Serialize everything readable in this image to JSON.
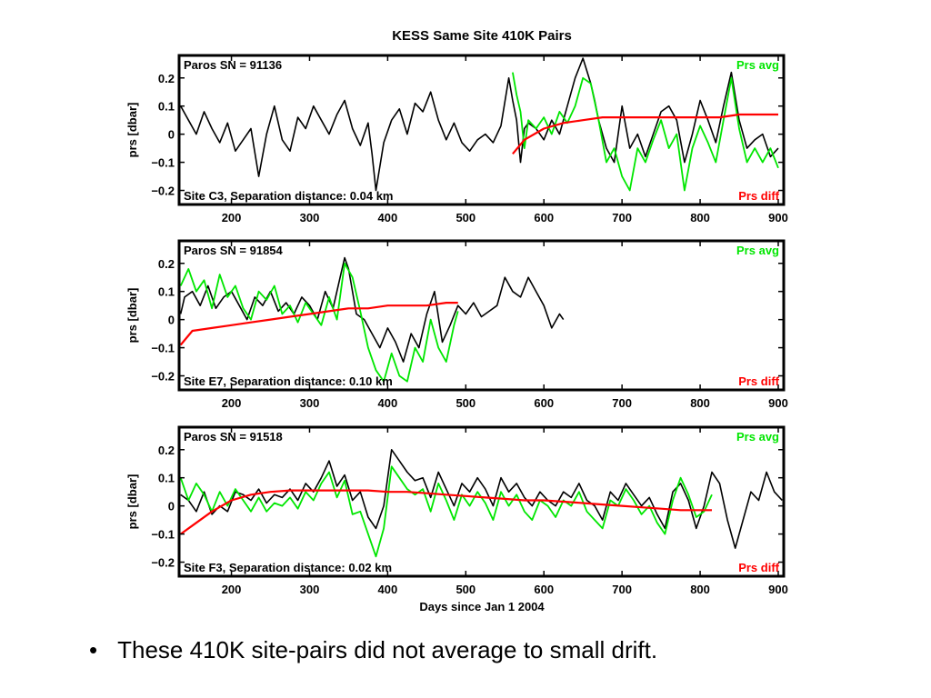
{
  "colors": {
    "avg": "#00e600",
    "diff": "#ff0000",
    "series": "#000000",
    "frame": "#000000"
  },
  "bullet": {
    "marker": "•",
    "text": "These 410K site-pairs did not average to small drift."
  },
  "chart_data": {
    "type": "line",
    "title": "KESS Same Site 410K Pairs",
    "xlabel": "Days since Jan 1 2004",
    "xlim": [
      133,
      907
    ],
    "xticks": [
      200,
      300,
      400,
      500,
      600,
      700,
      800,
      900
    ],
    "ylim": [
      -0.25,
      0.28
    ],
    "yticks": [
      -0.2,
      -0.1,
      0,
      0.1,
      0.2
    ],
    "ytick_labels": [
      "−0.2",
      "−0.1",
      "0",
      "0.1",
      "0.2"
    ],
    "ylabel": "prs [dbar]",
    "legend_avg": "Prs avg",
    "legend_diff": "Prs diff",
    "panels": [
      {
        "sn_label": "Paros SN = 91136",
        "site_label": "Site C3,  Separation distance: 0.04 km",
        "series": [
          {
            "name": "black",
            "x": [
              135,
              145,
              155,
              165,
              175,
              185,
              195,
              205,
              215,
              225,
              235,
              245,
              255,
              265,
              275,
              285,
              295,
              305,
              315,
              325,
              335,
              345,
              355,
              365,
              375,
              380,
              385,
              395,
              405,
              415,
              425,
              435,
              445,
              455,
              465,
              475,
              485,
              495,
              505,
              515,
              525,
              535,
              545,
              555,
              560,
              565,
              570,
              575,
              580,
              590,
              600,
              610,
              620,
              630,
              640,
              650,
              660,
              665,
              670,
              680,
              690,
              700,
              710,
              720,
              730,
              740,
              750,
              760,
              770,
              780,
              790,
              800,
              810,
              820,
              830,
              840,
              850,
              860,
              870,
              880,
              890,
              900
            ],
            "y": [
              0.1,
              0.05,
              0.0,
              0.08,
              0.02,
              -0.03,
              0.04,
              -0.06,
              -0.02,
              0.02,
              -0.15,
              0.0,
              0.1,
              -0.02,
              -0.06,
              0.06,
              0.02,
              0.1,
              0.05,
              0.0,
              0.07,
              0.12,
              0.02,
              -0.04,
              0.04,
              -0.07,
              -0.2,
              -0.03,
              0.05,
              0.09,
              0.0,
              0.11,
              0.08,
              0.15,
              0.05,
              -0.02,
              0.04,
              -0.03,
              -0.06,
              -0.02,
              0.0,
              -0.03,
              0.03,
              0.2,
              0.12,
              0.05,
              -0.1,
              0.02,
              0.04,
              0.02,
              -0.02,
              0.05,
              0.0,
              0.1,
              0.2,
              0.27,
              0.18,
              0.12,
              0.05,
              -0.05,
              -0.1,
              0.1,
              -0.05,
              0.0,
              -0.08,
              0.0,
              0.08,
              0.1,
              0.05,
              -0.1,
              0.0,
              0.12,
              0.05,
              -0.03,
              0.1,
              0.22,
              0.05,
              -0.05,
              -0.02,
              0.0,
              -0.08,
              -0.05
            ]
          },
          {
            "name": "green",
            "x": [
              560,
              565,
              570,
              575,
              580,
              590,
              600,
              610,
              620,
              630,
              640,
              650,
              660,
              670,
              680,
              690,
              700,
              710,
              720,
              730,
              740,
              750,
              760,
              770,
              780,
              790,
              800,
              810,
              820,
              830,
              840,
              850,
              860,
              870,
              880,
              890,
              900
            ],
            "y": [
              0.22,
              0.14,
              0.08,
              -0.05,
              0.05,
              0.02,
              0.06,
              0.0,
              0.08,
              0.04,
              0.1,
              0.2,
              0.18,
              0.05,
              -0.1,
              -0.05,
              -0.15,
              -0.2,
              -0.05,
              -0.1,
              -0.02,
              0.05,
              -0.05,
              0.0,
              -0.2,
              -0.05,
              0.03,
              -0.03,
              -0.1,
              0.05,
              0.2,
              0.02,
              -0.1,
              -0.05,
              -0.1,
              -0.05,
              -0.12
            ]
          },
          {
            "name": "red",
            "x": [
              560,
              575,
              600,
              625,
              650,
              675,
              700,
              725,
              750,
              775,
              800,
              825,
              850,
              875,
              900
            ],
            "y": [
              -0.07,
              -0.02,
              0.02,
              0.04,
              0.05,
              0.06,
              0.06,
              0.06,
              0.06,
              0.06,
              0.06,
              0.06,
              0.07,
              0.07,
              0.07
            ]
          }
        ]
      },
      {
        "sn_label": "Paros SN = 91854",
        "site_label": "Site E7,  Separation distance: 0.10 km",
        "series": [
          {
            "name": "black",
            "x": [
              135,
              140,
              150,
              160,
              170,
              180,
              190,
              200,
              210,
              220,
              230,
              240,
              250,
              260,
              270,
              280,
              290,
              300,
              310,
              320,
              330,
              340,
              345,
              350,
              360,
              370,
              380,
              390,
              400,
              410,
              420,
              430,
              440,
              450,
              460,
              470,
              480,
              490,
              500,
              510,
              520,
              530,
              540,
              550,
              560,
              570,
              580,
              590,
              600,
              610,
              620,
              625
            ],
            "y": [
              0.02,
              0.08,
              0.1,
              0.05,
              0.12,
              0.04,
              0.08,
              0.1,
              0.05,
              0.0,
              0.08,
              0.05,
              0.1,
              0.03,
              0.06,
              0.02,
              0.08,
              0.05,
              0.0,
              0.1,
              0.04,
              0.16,
              0.22,
              0.18,
              0.02,
              0.0,
              -0.05,
              -0.1,
              -0.03,
              -0.08,
              -0.15,
              -0.05,
              -0.1,
              0.02,
              0.1,
              -0.08,
              -0.02,
              0.05,
              0.02,
              0.06,
              0.01,
              0.03,
              0.05,
              0.15,
              0.1,
              0.08,
              0.15,
              0.1,
              0.05,
              -0.03,
              0.02,
              0.0
            ]
          },
          {
            "name": "green",
            "x": [
              135,
              145,
              155,
              165,
              175,
              185,
              195,
              205,
              215,
              225,
              235,
              245,
              255,
              265,
              275,
              285,
              295,
              305,
              315,
              325,
              335,
              345,
              355,
              365,
              375,
              385,
              395,
              405,
              415,
              425,
              435,
              445,
              455,
              465,
              475,
              485,
              490
            ],
            "y": [
              0.12,
              0.18,
              0.1,
              0.14,
              0.04,
              0.16,
              0.08,
              0.12,
              0.04,
              0.0,
              0.1,
              0.07,
              0.12,
              0.02,
              0.05,
              -0.01,
              0.06,
              0.02,
              -0.02,
              0.08,
              0.0,
              0.2,
              0.15,
              0.03,
              -0.1,
              -0.18,
              -0.22,
              -0.12,
              -0.2,
              -0.22,
              -0.1,
              -0.15,
              0.0,
              -0.1,
              -0.15,
              -0.02,
              0.03
            ]
          },
          {
            "name": "red",
            "x": [
              135,
              150,
              175,
              200,
              225,
              250,
              275,
              300,
              325,
              350,
              375,
              400,
              425,
              450,
              475,
              490
            ],
            "y": [
              -0.09,
              -0.04,
              -0.03,
              -0.02,
              -0.01,
              0.0,
              0.01,
              0.02,
              0.03,
              0.04,
              0.04,
              0.05,
              0.05,
              0.05,
              0.06,
              0.06
            ]
          }
        ]
      },
      {
        "sn_label": "Paros SN = 91518",
        "site_label": "Site F3,  Separation distance: 0.02 km",
        "series": [
          {
            "name": "black",
            "x": [
              135,
              145,
              155,
              165,
              175,
              185,
              195,
              205,
              215,
              225,
              235,
              245,
              255,
              265,
              275,
              285,
              295,
              305,
              315,
              325,
              335,
              345,
              355,
              365,
              375,
              385,
              395,
              405,
              415,
              425,
              435,
              445,
              455,
              465,
              475,
              485,
              495,
              505,
              515,
              525,
              535,
              545,
              555,
              565,
              575,
              585,
              595,
              605,
              615,
              625,
              635,
              645,
              655,
              665,
              675,
              685,
              695,
              705,
              715,
              725,
              735,
              745,
              755,
              765,
              775,
              785,
              795,
              805,
              815,
              825,
              835,
              845,
              855,
              865,
              875,
              885,
              895,
              905
            ],
            "y": [
              0.04,
              0.02,
              -0.02,
              0.05,
              -0.03,
              0.0,
              -0.02,
              0.05,
              0.04,
              0.02,
              0.06,
              0.01,
              0.04,
              0.03,
              0.06,
              0.02,
              0.08,
              0.05,
              0.1,
              0.16,
              0.07,
              0.11,
              0.02,
              0.05,
              -0.04,
              -0.08,
              0.0,
              0.2,
              0.16,
              0.12,
              0.09,
              0.1,
              0.03,
              0.12,
              0.06,
              0.0,
              0.08,
              0.05,
              0.1,
              0.06,
              0.0,
              0.1,
              0.05,
              0.08,
              0.03,
              0.0,
              0.05,
              0.02,
              0.0,
              0.05,
              0.03,
              0.08,
              0.02,
              0.0,
              -0.05,
              0.05,
              0.02,
              0.08,
              0.04,
              0.0,
              0.03,
              -0.03,
              -0.08,
              0.05,
              0.08,
              0.02,
              -0.08,
              0.0,
              0.12,
              0.08,
              -0.05,
              -0.15,
              -0.05,
              0.05,
              0.02,
              0.12,
              0.05,
              0.02
            ]
          },
          {
            "name": "green",
            "x": [
              135,
              145,
              155,
              165,
              175,
              185,
              195,
              205,
              215,
              225,
              235,
              245,
              255,
              265,
              275,
              285,
              295,
              305,
              315,
              325,
              335,
              345,
              355,
              365,
              375,
              385,
              395,
              405,
              415,
              425,
              435,
              445,
              455,
              465,
              475,
              485,
              495,
              505,
              515,
              525,
              535,
              545,
              555,
              565,
              575,
              585,
              595,
              605,
              615,
              625,
              635,
              645,
              655,
              665,
              675,
              685,
              695,
              705,
              715,
              725,
              735,
              745,
              755,
              765,
              775,
              785,
              795,
              805,
              815
            ],
            "y": [
              0.1,
              0.02,
              0.08,
              0.04,
              -0.02,
              0.05,
              0.0,
              0.06,
              0.02,
              -0.02,
              0.03,
              -0.02,
              0.01,
              0.0,
              0.03,
              -0.01,
              0.05,
              0.02,
              0.08,
              0.12,
              0.03,
              0.09,
              -0.03,
              -0.02,
              -0.1,
              -0.18,
              -0.08,
              0.14,
              0.1,
              0.06,
              0.04,
              0.06,
              -0.02,
              0.08,
              0.02,
              -0.05,
              0.04,
              0.0,
              0.05,
              0.01,
              -0.05,
              0.05,
              0.0,
              0.04,
              -0.02,
              -0.05,
              0.02,
              0.0,
              -0.04,
              0.02,
              0.0,
              0.05,
              -0.02,
              -0.05,
              -0.08,
              0.02,
              0.0,
              0.06,
              0.02,
              -0.03,
              0.0,
              -0.06,
              -0.1,
              0.02,
              0.1,
              0.04,
              -0.04,
              -0.02,
              0.04
            ]
          },
          {
            "name": "red",
            "x": [
              135,
              150,
              175,
              200,
              225,
              250,
              275,
              300,
              325,
              350,
              375,
              400,
              425,
              450,
              475,
              500,
              525,
              550,
              575,
              600,
              625,
              650,
              675,
              700,
              725,
              750,
              775,
              800,
              815
            ],
            "y": [
              -0.1,
              -0.07,
              -0.02,
              0.02,
              0.04,
              0.05,
              0.055,
              0.055,
              0.055,
              0.055,
              0.055,
              0.05,
              0.05,
              0.045,
              0.04,
              0.035,
              0.03,
              0.025,
              0.02,
              0.02,
              0.015,
              0.01,
              0.005,
              0.0,
              -0.005,
              -0.01,
              -0.015,
              -0.015,
              -0.015
            ]
          }
        ]
      }
    ]
  }
}
